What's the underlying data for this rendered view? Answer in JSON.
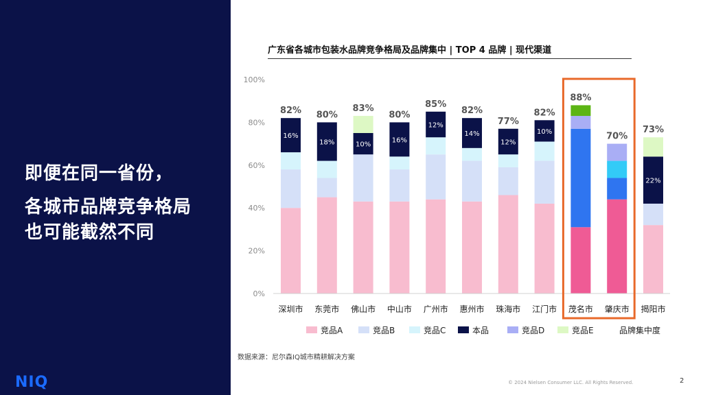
{
  "headline": {
    "line1": "即便在同一省份，",
    "line2": "各城市品牌竞争格局",
    "line3": "也可能截然不同"
  },
  "logo": "NIQ",
  "source": "数据来源：尼尔森IQ城市精耕解决方案",
  "copyright": "© 2024 Nielsen Consumer LLC. All Rights Reserved.",
  "page_number": "2",
  "colors": {
    "panel": "#0b1248",
    "highlight_box": "#e8692a",
    "logo": "#1b6bff"
  },
  "chart_data": {
    "type": "bar",
    "stacked": true,
    "title": "广东省各城市包装水品牌竞争格局及品牌集中 | TOP 4 品牌 | 现代渠道",
    "ylim": [
      0,
      100
    ],
    "yticks": [
      0,
      20,
      40,
      60,
      80,
      100
    ],
    "ytick_labels": [
      "0%",
      "20%",
      "40%",
      "60%",
      "80%",
      "100%"
    ],
    "categories": [
      "深圳市",
      "东莞市",
      "佛山市",
      "中山市",
      "广州市",
      "惠州市",
      "珠海市",
      "江门市",
      "茂名市",
      "肇庆市",
      "揭阳市"
    ],
    "totals": [
      82,
      80,
      83,
      80,
      85,
      82,
      77,
      82,
      88,
      70,
      73
    ],
    "total_labels": [
      "82%",
      "80%",
      "83%",
      "80%",
      "85%",
      "82%",
      "77%",
      "82%",
      "88%",
      "70%",
      "73%"
    ],
    "highlight_categories": [
      "茂名市",
      "肇庆市"
    ],
    "series": [
      {
        "name": "竞品A",
        "color": "#f8bccf",
        "highlight_color": "#ef5b95",
        "values": [
          40,
          45,
          43,
          43,
          44,
          43,
          46,
          42,
          31,
          44,
          32
        ]
      },
      {
        "name": "竞品B",
        "color": "#d5e0f8",
        "highlight_color": "#2f75f0",
        "values": [
          18,
          9,
          22,
          15,
          21,
          19,
          13,
          20,
          46,
          10,
          10
        ]
      },
      {
        "name": "竞品C",
        "color": "#d6f4fc",
        "highlight_color": "#33cbf7",
        "values": [
          8,
          8,
          0,
          6,
          8,
          6,
          6,
          9,
          0,
          8,
          0
        ]
      },
      {
        "name": "本品",
        "color": "#0b1248",
        "highlight_color": "#0b1248",
        "values": [
          16,
          18,
          10,
          16,
          12,
          14,
          12,
          10,
          0,
          0,
          22
        ]
      },
      {
        "name": "竞品D",
        "color": "#a9aef5",
        "highlight_color": "#a9aef5",
        "values": [
          0,
          0,
          0,
          0,
          0,
          0,
          0,
          0,
          6,
          8,
          0
        ]
      },
      {
        "name": "竞品E",
        "color": "#ddf8c4",
        "highlight_color": "#5cb514",
        "values": [
          0,
          0,
          8,
          0,
          0,
          0,
          0,
          0,
          5,
          0,
          9
        ]
      }
    ],
    "segment_labels": [
      {
        "category": "深圳市",
        "series": "本品",
        "label": "16%"
      },
      {
        "category": "东莞市",
        "series": "本品",
        "label": "18%"
      },
      {
        "category": "佛山市",
        "series": "本品",
        "label": "10%"
      },
      {
        "category": "中山市",
        "series": "本品",
        "label": "16%"
      },
      {
        "category": "广州市",
        "series": "本品",
        "label": "12%"
      },
      {
        "category": "惠州市",
        "series": "本品",
        "label": "14%"
      },
      {
        "category": "珠海市",
        "series": "本品",
        "label": "12%"
      },
      {
        "category": "江门市",
        "series": "本品",
        "label": "10%"
      },
      {
        "category": "揭阳市",
        "series": "本品",
        "label": "22%"
      }
    ],
    "legend": [
      "竞品A",
      "竞品B",
      "竞品C",
      "本品",
      "竞品D",
      "竞品E"
    ],
    "legend_extra": "品牌集中度",
    "legend_position": "bottom"
  }
}
